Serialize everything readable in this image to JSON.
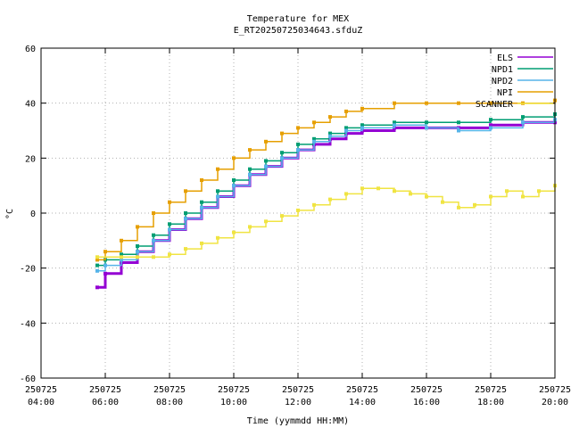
{
  "chart_data": {
    "type": "line",
    "title": "Temperature for MEX",
    "subtitle": "E_RT20250725034643.sfduZ",
    "xlabel": "Time (yymmdd HH:MM)",
    "ylabel": "°C",
    "xlim": [
      "2025-07-25T04:00",
      "2025-07-25T20:00"
    ],
    "ylim": [
      -60,
      60
    ],
    "grid": true,
    "legend_position": "top-right",
    "x_ticks": [
      {
        "date": "250725",
        "time": "04:00",
        "x": "2025-07-25T04:00"
      },
      {
        "date": "250725",
        "time": "06:00",
        "x": "2025-07-25T06:00"
      },
      {
        "date": "250725",
        "time": "08:00",
        "x": "2025-07-25T08:00"
      },
      {
        "date": "250725",
        "time": "10:00",
        "x": "2025-07-25T10:00"
      },
      {
        "date": "250725",
        "time": "12:00",
        "x": "2025-07-25T12:00"
      },
      {
        "date": "250725",
        "time": "14:00",
        "x": "2025-07-25T14:00"
      },
      {
        "date": "250725",
        "time": "16:00",
        "x": "2025-07-25T16:00"
      },
      {
        "date": "250725",
        "time": "18:00",
        "x": "2025-07-25T18:00"
      },
      {
        "date": "250725",
        "time": "20:00",
        "x": "2025-07-25T20:00"
      }
    ],
    "y_ticks": [
      "-60",
      "-40",
      "-20",
      "0",
      "20",
      "40",
      "60"
    ],
    "y_tick_values": [
      -60,
      -40,
      -20,
      0,
      20,
      40,
      60
    ],
    "series": [
      {
        "name": "ELS",
        "color": "#9400d3",
        "x": [
          "2025-07-25T05:45",
          "2025-07-25T06:00",
          "2025-07-25T06:30",
          "2025-07-25T07:00",
          "2025-07-25T07:30",
          "2025-07-25T08:00",
          "2025-07-25T08:30",
          "2025-07-25T09:00",
          "2025-07-25T09:30",
          "2025-07-25T10:00",
          "2025-07-25T10:30",
          "2025-07-25T11:00",
          "2025-07-25T11:30",
          "2025-07-25T12:00",
          "2025-07-25T12:30",
          "2025-07-25T13:00",
          "2025-07-25T13:30",
          "2025-07-25T14:00",
          "2025-07-25T15:00",
          "2025-07-25T16:00",
          "2025-07-25T17:00",
          "2025-07-25T18:00",
          "2025-07-25T19:00",
          "2025-07-25T20:00"
        ],
        "y": [
          -27,
          -22,
          -18,
          -14,
          -10,
          -6,
          -2,
          2,
          6,
          10,
          14,
          17,
          20,
          23,
          25,
          27,
          29,
          30,
          31,
          31,
          31,
          32,
          33,
          33
        ]
      },
      {
        "name": "NPD1",
        "color": "#009e73",
        "x": [
          "2025-07-25T05:45",
          "2025-07-25T06:00",
          "2025-07-25T06:30",
          "2025-07-25T07:00",
          "2025-07-25T07:30",
          "2025-07-25T08:00",
          "2025-07-25T08:30",
          "2025-07-25T09:00",
          "2025-07-25T09:30",
          "2025-07-25T10:00",
          "2025-07-25T10:30",
          "2025-07-25T11:00",
          "2025-07-25T11:30",
          "2025-07-25T12:00",
          "2025-07-25T12:30",
          "2025-07-25T13:00",
          "2025-07-25T13:30",
          "2025-07-25T14:00",
          "2025-07-25T15:00",
          "2025-07-25T16:00",
          "2025-07-25T17:00",
          "2025-07-25T18:00",
          "2025-07-25T19:00",
          "2025-07-25T20:00"
        ],
        "y": [
          -19,
          -17,
          -15,
          -12,
          -8,
          -4,
          0,
          4,
          8,
          12,
          16,
          19,
          22,
          25,
          27,
          29,
          31,
          32,
          33,
          33,
          33,
          34,
          35,
          36
        ]
      },
      {
        "name": "NPD2",
        "color": "#56b4e9",
        "x": [
          "2025-07-25T05:45",
          "2025-07-25T06:00",
          "2025-07-25T06:30",
          "2025-07-25T07:00",
          "2025-07-25T07:30",
          "2025-07-25T08:00",
          "2025-07-25T08:30",
          "2025-07-25T09:00",
          "2025-07-25T09:30",
          "2025-07-25T10:00",
          "2025-07-25T10:30",
          "2025-07-25T11:00",
          "2025-07-25T11:30",
          "2025-07-25T12:00",
          "2025-07-25T12:30",
          "2025-07-25T13:00",
          "2025-07-25T13:30",
          "2025-07-25T14:00",
          "2025-07-25T15:00",
          "2025-07-25T16:00",
          "2025-07-25T17:00",
          "2025-07-25T18:00",
          "2025-07-25T19:00",
          "2025-07-25T20:00"
        ],
        "y": [
          -21,
          -19,
          -17,
          -14,
          -10,
          -6,
          -2,
          2,
          6,
          10,
          14,
          17,
          20,
          23,
          26,
          28,
          30,
          31,
          32,
          31,
          30,
          31,
          33,
          34
        ]
      },
      {
        "name": "NPI",
        "color": "#e69f00",
        "x": [
          "2025-07-25T05:45",
          "2025-07-25T06:00",
          "2025-07-25T06:30",
          "2025-07-25T07:00",
          "2025-07-25T07:30",
          "2025-07-25T08:00",
          "2025-07-25T08:30",
          "2025-07-25T09:00",
          "2025-07-25T09:30",
          "2025-07-25T10:00",
          "2025-07-25T10:30",
          "2025-07-25T11:00",
          "2025-07-25T11:30",
          "2025-07-25T12:00",
          "2025-07-25T12:30",
          "2025-07-25T13:00",
          "2025-07-25T13:30",
          "2025-07-25T14:00",
          "2025-07-25T15:00",
          "2025-07-25T16:00",
          "2025-07-25T17:00",
          "2025-07-25T18:00",
          "2025-07-25T19:00",
          "2025-07-25T20:00"
        ],
        "y": [
          -17,
          -14,
          -10,
          -5,
          0,
          4,
          8,
          12,
          16,
          20,
          23,
          26,
          29,
          31,
          33,
          35,
          37,
          38,
          40,
          40,
          40,
          40,
          40,
          41
        ]
      },
      {
        "name": "SCANNER",
        "color": "#f0e442",
        "x": [
          "2025-07-25T05:45",
          "2025-07-25T06:30",
          "2025-07-25T07:00",
          "2025-07-25T07:30",
          "2025-07-25T08:00",
          "2025-07-25T08:30",
          "2025-07-25T09:00",
          "2025-07-25T09:30",
          "2025-07-25T10:00",
          "2025-07-25T10:30",
          "2025-07-25T11:00",
          "2025-07-25T11:30",
          "2025-07-25T12:00",
          "2025-07-25T12:30",
          "2025-07-25T13:00",
          "2025-07-25T13:30",
          "2025-07-25T14:00",
          "2025-07-25T14:30",
          "2025-07-25T15:00",
          "2025-07-25T15:30",
          "2025-07-25T16:00",
          "2025-07-25T16:30",
          "2025-07-25T17:00",
          "2025-07-25T17:30",
          "2025-07-25T18:00",
          "2025-07-25T18:30",
          "2025-07-25T19:00",
          "2025-07-25T19:30",
          "2025-07-25T20:00"
        ],
        "y": [
          -16,
          -16,
          -16,
          -16,
          -15,
          -13,
          -11,
          -9,
          -7,
          -5,
          -3,
          -1,
          1,
          3,
          5,
          7,
          9,
          9,
          8,
          7,
          6,
          4,
          2,
          3,
          6,
          8,
          6,
          8,
          10
        ]
      }
    ]
  }
}
